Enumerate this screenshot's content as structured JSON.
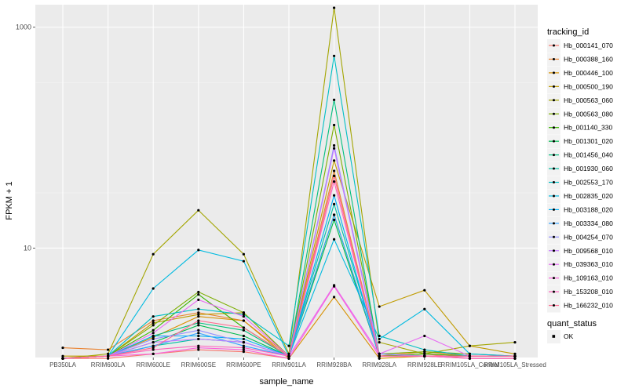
{
  "chart_data": {
    "type": "line",
    "xlabel": "sample_name",
    "ylabel": "FPKM + 1",
    "y_scale": "log10",
    "y_ticks": [
      "10",
      "1000"
    ],
    "y_tick_values": [
      10,
      1000
    ],
    "ylim": [
      1.02,
      1600
    ],
    "categories": [
      "PB350LA",
      "RRIM600LA",
      "RRIM600LE",
      "RRIM600SE",
      "RRIM600PE",
      "RRIM901LA",
      "RRIM928BA",
      "RRIM928LA",
      "RRIM928LE",
      "RRIM105LA_Control",
      "RRIM105LA_Stressed"
    ],
    "legend_title": "tracking_id",
    "series": [
      {
        "name": "Hb_000141_070",
        "color": "#F8766D",
        "values": [
          1.0,
          1.0,
          1.1,
          1.2,
          1.15,
          1.0,
          45.0,
          1.05,
          1.1,
          1.0,
          1.0
        ]
      },
      {
        "name": "Hb_000388_160",
        "color": "#EA8331",
        "values": [
          1.25,
          1.2,
          2.2,
          2.6,
          2.2,
          1.05,
          50.0,
          1.05,
          1.15,
          1.05,
          1.05
        ]
      },
      {
        "name": "Hb_000446_100",
        "color": "#D89000",
        "values": [
          1.0,
          1.05,
          1.55,
          2.4,
          2.2,
          1.0,
          3.6,
          1.0,
          1.05,
          1.0,
          1.0
        ]
      },
      {
        "name": "Hb_000500_190",
        "color": "#C09B00",
        "values": [
          1.05,
          1.05,
          2.1,
          2.5,
          2.6,
          1.05,
          62.0,
          2.95,
          4.15,
          1.3,
          1.1
        ]
      },
      {
        "name": "Hb_000563_060",
        "color": "#A3A500",
        "values": [
          1.0,
          1.1,
          8.8,
          22.0,
          8.8,
          1.1,
          1500.0,
          1.4,
          1.1,
          1.3,
          1.4
        ]
      },
      {
        "name": "Hb_000563_080",
        "color": "#7CAE00",
        "values": [
          1.0,
          1.05,
          2.0,
          4.0,
          2.6,
          1.05,
          130.0,
          1.1,
          1.15,
          1.1,
          1.05
        ]
      },
      {
        "name": "Hb_001140_330",
        "color": "#39B600",
        "values": [
          1.0,
          1.05,
          1.8,
          3.8,
          1.9,
          1.05,
          20.0,
          1.05,
          1.1,
          1.05,
          1.05
        ]
      },
      {
        "name": "Hb_001301_020",
        "color": "#00BB4E",
        "values": [
          1.0,
          1.05,
          1.4,
          2.0,
          1.6,
          1.05,
          18.0,
          1.05,
          1.05,
          1.05,
          1.05
        ]
      },
      {
        "name": "Hb_001456_040",
        "color": "#00BF7D",
        "values": [
          1.0,
          1.05,
          1.6,
          2.1,
          1.8,
          1.05,
          220.0,
          1.05,
          1.05,
          1.05,
          1.05
        ]
      },
      {
        "name": "Hb_001930_060",
        "color": "#00C1A3",
        "values": [
          1.0,
          1.05,
          1.3,
          1.5,
          1.4,
          1.05,
          25.0,
          1.1,
          1.05,
          1.05,
          1.05
        ]
      },
      {
        "name": "Hb_002553_170",
        "color": "#00BFC4",
        "values": [
          1.0,
          1.05,
          2.4,
          2.8,
          2.5,
          1.3,
          550.0,
          1.6,
          1.2,
          1.05,
          1.05
        ]
      },
      {
        "name": "Hb_002835_020",
        "color": "#00BAE0",
        "values": [
          1.0,
          1.05,
          4.3,
          9.6,
          7.6,
          1.05,
          12.0,
          1.5,
          2.8,
          1.1,
          1.05
        ]
      },
      {
        "name": "Hb_003188_020",
        "color": "#00B0F6",
        "values": [
          1.0,
          1.05,
          1.6,
          1.6,
          1.5,
          1.05,
          30.0,
          1.05,
          1.05,
          1.05,
          1.05
        ]
      },
      {
        "name": "Hb_003334_080",
        "color": "#35A2FF",
        "values": [
          1.0,
          1.05,
          1.3,
          1.7,
          1.3,
          1.05,
          20.0,
          1.05,
          1.05,
          1.05,
          1.05
        ]
      },
      {
        "name": "Hb_004254_070",
        "color": "#9590FF",
        "values": [
          1.0,
          1.05,
          1.5,
          1.8,
          1.4,
          1.05,
          85.0,
          1.1,
          1.05,
          1.05,
          1.05
        ]
      },
      {
        "name": "Hb_009568_010",
        "color": "#C77CFF",
        "values": [
          1.0,
          1.05,
          1.4,
          1.5,
          1.4,
          1.05,
          80.0,
          1.05,
          1.05,
          1.05,
          1.05
        ]
      },
      {
        "name": "Hb_039363_010",
        "color": "#E76BF3",
        "values": [
          1.0,
          1.05,
          1.7,
          3.4,
          2.4,
          1.05,
          4.6,
          1.1,
          1.6,
          1.05,
          1.05
        ]
      },
      {
        "name": "Hb_109163_010",
        "color": "#FA62DB",
        "values": [
          1.0,
          1.05,
          1.1,
          1.25,
          1.2,
          1.0,
          4.5,
          1.05,
          1.05,
          1.0,
          1.0
        ]
      },
      {
        "name": "Hb_153208_010",
        "color": "#FF62BC",
        "values": [
          1.0,
          1.05,
          1.2,
          1.3,
          1.25,
          1.05,
          40.0,
          1.05,
          1.05,
          1.05,
          1.05
        ]
      },
      {
        "name": "Hb_166232_010",
        "color": "#FF6C91",
        "values": [
          1.0,
          1.05,
          1.25,
          2.2,
          1.9,
          1.05,
          45.0,
          1.05,
          1.05,
          1.05,
          1.05
        ]
      }
    ],
    "legend2_title": "quant_status",
    "legend2_items": [
      "OK"
    ],
    "grid": true,
    "legend_position": "right"
  }
}
